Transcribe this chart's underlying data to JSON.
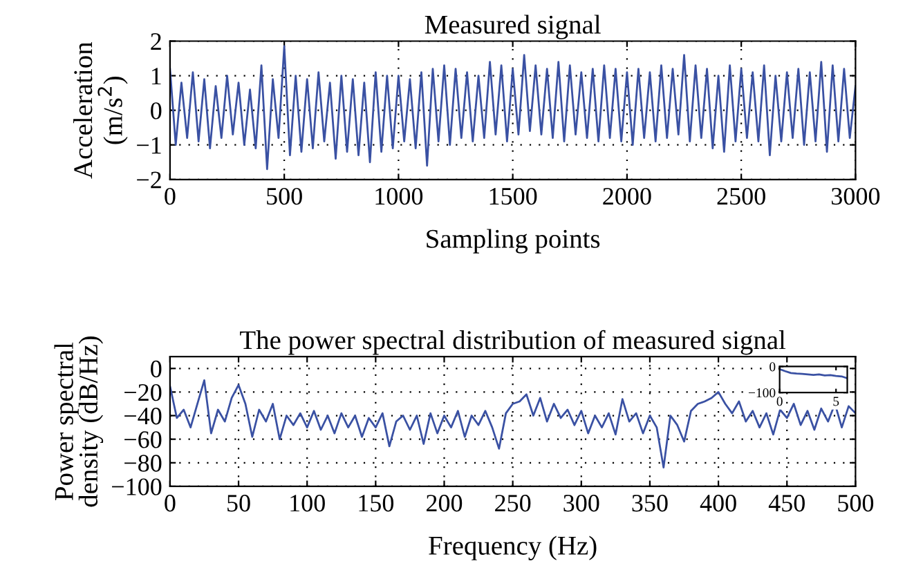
{
  "chart_data": [
    {
      "type": "line",
      "title": "Measured signal",
      "xlabel": "Sampling points",
      "ylabel": "Acceleration\n(m/s$^{2}$)",
      "xlim": [
        0,
        3000
      ],
      "xticks": [
        0,
        500,
        1000,
        1500,
        2000,
        2500,
        3000
      ],
      "ylim": [
        -2,
        2
      ],
      "yticks": [
        -2,
        -1,
        0,
        1,
        2
      ],
      "grid": true,
      "series": [
        {
          "color": "#3a51a3",
          "x": [
            0,
            25,
            50,
            75,
            100,
            125,
            150,
            175,
            200,
            225,
            250,
            275,
            300,
            325,
            350,
            375,
            400,
            425,
            450,
            475,
            500,
            525,
            550,
            575,
            600,
            625,
            650,
            675,
            700,
            725,
            750,
            775,
            800,
            825,
            850,
            875,
            900,
            925,
            950,
            975,
            1000,
            1025,
            1050,
            1075,
            1100,
            1125,
            1150,
            1175,
            1200,
            1225,
            1250,
            1275,
            1300,
            1325,
            1350,
            1375,
            1400,
            1425,
            1450,
            1475,
            1500,
            1525,
            1550,
            1575,
            1600,
            1625,
            1650,
            1675,
            1700,
            1725,
            1750,
            1775,
            1800,
            1825,
            1850,
            1875,
            1900,
            1925,
            1950,
            1975,
            2000,
            2025,
            2050,
            2075,
            2100,
            2125,
            2150,
            2175,
            2200,
            2225,
            2250,
            2275,
            2300,
            2325,
            2350,
            2375,
            2400,
            2425,
            2450,
            2475,
            2500,
            2525,
            2550,
            2575,
            2600,
            2625,
            2650,
            2675,
            2700,
            2725,
            2750,
            2775,
            2800,
            2825,
            2850,
            2875,
            2900,
            2925,
            2950,
            2975,
            3000
          ],
          "values": [
            1.2,
            -1,
            0.8,
            -0.8,
            1.1,
            -0.9,
            0.9,
            -1.1,
            0.7,
            -0.8,
            1,
            -0.7,
            0.8,
            -1,
            0.6,
            -1.1,
            1.3,
            -1.7,
            0.9,
            -0.8,
            1.85,
            -1.3,
            1,
            -1.2,
            0.9,
            -1.1,
            1.1,
            -0.9,
            0.8,
            -1.4,
            1,
            -1.2,
            0.9,
            -1.3,
            0.8,
            -1.5,
            1.1,
            -1.2,
            1,
            -1.1,
            1,
            -0.9,
            0.9,
            -1.1,
            1.1,
            -1.6,
            1.2,
            -0.9,
            1.3,
            -1,
            1.2,
            -0.8,
            1.1,
            -0.9,
            1,
            -0.8,
            1.4,
            -0.7,
            1.3,
            -0.9,
            1.2,
            -0.7,
            1.6,
            -0.6,
            1.3,
            -0.7,
            1.2,
            -0.8,
            1.4,
            -0.9,
            1.3,
            -0.7,
            1.1,
            -0.8,
            1.2,
            -0.9,
            1.3,
            -0.8,
            1.2,
            -0.9,
            1.1,
            -1,
            1.2,
            -0.8,
            1.1,
            -0.9,
            1.3,
            -0.8,
            1.2,
            -0.7,
            1.6,
            -0.9,
            1.3,
            -0.8,
            1.2,
            -1.1,
            1,
            -1.2,
            1.3,
            -0.9,
            1.2,
            -0.8,
            1.1,
            -0.9,
            1.3,
            -1.3,
            1,
            -0.9,
            1.1,
            -0.8,
            1.2,
            -1,
            1.1,
            -0.9,
            1.4,
            -1.2,
            1.3,
            -0.9,
            1.2,
            -0.8,
            0.7
          ]
        }
      ]
    },
    {
      "type": "line",
      "title": "The power spectral distribution of measured signal",
      "xlabel": "Frequency (Hz)",
      "ylabel": "Power spectral\ndensity (dB/Hz)",
      "xlim": [
        0,
        500
      ],
      "xticks": [
        0,
        50,
        100,
        150,
        200,
        250,
        300,
        350,
        400,
        450,
        500
      ],
      "ylim": [
        -100,
        10
      ],
      "yticks": [
        -100,
        -80,
        -60,
        -40,
        -20,
        0
      ],
      "grid": true,
      "series": [
        {
          "color": "#3a51a3",
          "x": [
            0,
            5,
            10,
            15,
            20,
            25,
            30,
            35,
            40,
            45,
            50,
            55,
            60,
            65,
            70,
            75,
            80,
            85,
            90,
            95,
            100,
            105,
            110,
            115,
            120,
            125,
            130,
            135,
            140,
            145,
            150,
            155,
            160,
            165,
            170,
            175,
            180,
            185,
            190,
            195,
            200,
            205,
            210,
            215,
            220,
            225,
            230,
            235,
            240,
            245,
            250,
            255,
            260,
            265,
            270,
            275,
            280,
            285,
            290,
            295,
            300,
            305,
            310,
            315,
            320,
            325,
            330,
            335,
            340,
            345,
            350,
            355,
            360,
            365,
            370,
            375,
            380,
            385,
            390,
            395,
            400,
            405,
            410,
            415,
            420,
            425,
            430,
            435,
            440,
            445,
            450,
            455,
            460,
            465,
            470,
            475,
            480,
            485,
            490,
            495,
            500
          ],
          "values": [
            -15,
            -42,
            -35,
            -50,
            -30,
            -10,
            -55,
            -35,
            -45,
            -25,
            -14,
            -30,
            -58,
            -35,
            -45,
            -30,
            -60,
            -40,
            -48,
            -38,
            -50,
            -36,
            -52,
            -40,
            -55,
            -38,
            -50,
            -40,
            -58,
            -42,
            -50,
            -38,
            -66,
            -45,
            -40,
            -52,
            -40,
            -64,
            -38,
            -55,
            -40,
            -50,
            -36,
            -58,
            -40,
            -48,
            -36,
            -50,
            -68,
            -38,
            -30,
            -28,
            -22,
            -40,
            -25,
            -45,
            -30,
            -42,
            -35,
            -48,
            -36,
            -55,
            -40,
            -50,
            -38,
            -56,
            -26,
            -45,
            -38,
            -55,
            -40,
            -50,
            -84,
            -40,
            -48,
            -62,
            -36,
            -30,
            -28,
            -25,
            -20,
            -30,
            -38,
            -28,
            -45,
            -36,
            -50,
            -38,
            -56,
            -35,
            -42,
            -30,
            -48,
            -36,
            -52,
            -34,
            -45,
            -30,
            -50,
            -32,
            -38
          ]
        }
      ]
    },
    {
      "type": "line",
      "xlim": [
        0,
        6
      ],
      "xticks": [
        0,
        5
      ],
      "ylim": [
        -100,
        0
      ],
      "yticks": [
        -100,
        0
      ],
      "series": [
        {
          "color": "#3a51a3",
          "x": [
            0,
            0.5,
            1,
            1.5,
            2,
            2.5,
            3,
            3.5,
            4,
            4.5,
            5,
            5.5,
            6
          ],
          "values": [
            -10,
            -18,
            -25,
            -27,
            -28,
            -30,
            -32,
            -30,
            -34,
            -33,
            -36,
            -38,
            -45
          ]
        }
      ]
    }
  ]
}
